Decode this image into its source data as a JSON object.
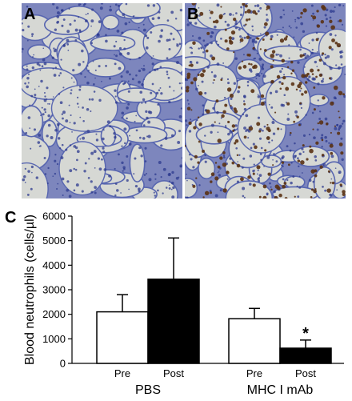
{
  "panels": {
    "a": {
      "letter": "A",
      "stain": "none"
    },
    "b": {
      "letter": "B",
      "stain": "neutrophil"
    },
    "c": {
      "letter": "C"
    }
  },
  "colors": {
    "tissue": "#5866b0",
    "airspace": "#d6d8d4",
    "stain": "#5a3214",
    "bar_pre": "#ffffff",
    "bar_post": "#000000"
  },
  "chart_data": {
    "type": "bar",
    "ylabel": "Blood neutrophils (cells/µl)",
    "ylim": [
      0,
      6000
    ],
    "yticks": [
      0,
      1000,
      2000,
      3000,
      4000,
      5000,
      6000
    ],
    "groups": [
      "PBS",
      "MHC I mAb"
    ],
    "categories": [
      "Pre",
      "Post"
    ],
    "series": [
      {
        "group": "PBS",
        "category": "Pre",
        "value": 2100,
        "error": 700
      },
      {
        "group": "PBS",
        "category": "Post",
        "value": 3430,
        "error": 1680
      },
      {
        "group": "MHC I mAb",
        "category": "Pre",
        "value": 1820,
        "error": 420
      },
      {
        "group": "MHC I mAb",
        "category": "Post",
        "value": 620,
        "error": 330,
        "annotation": "*"
      }
    ],
    "grid": false
  }
}
